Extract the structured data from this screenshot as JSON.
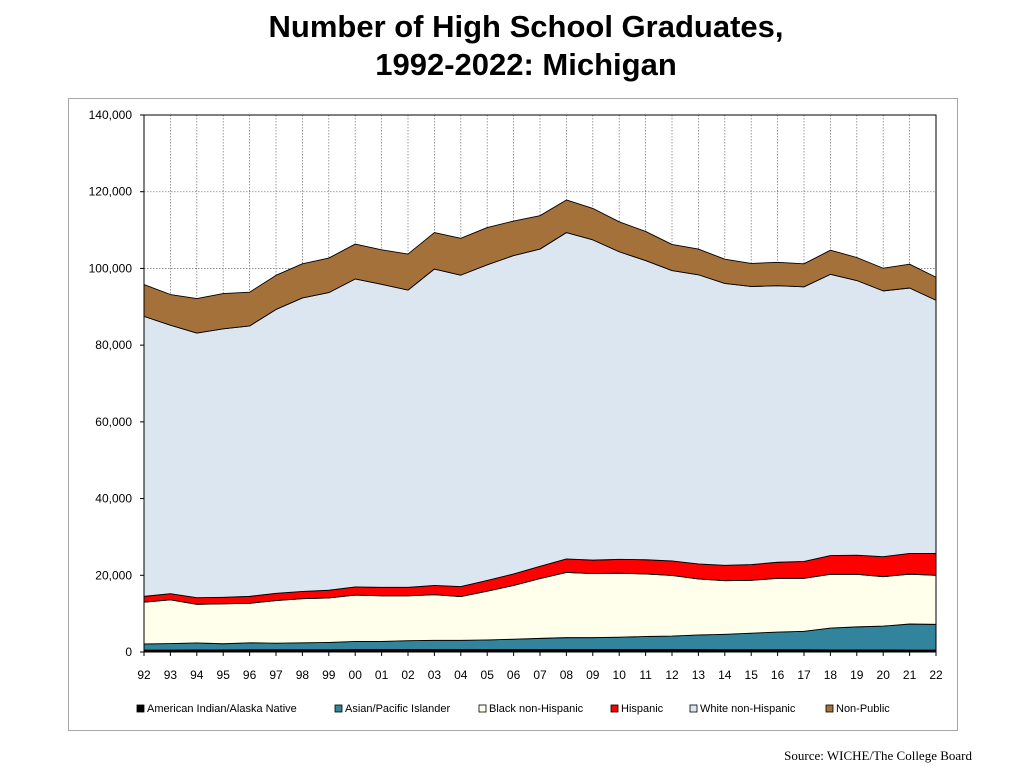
{
  "title_line1": "Number of High School Graduates,",
  "title_line2": "1992-2022:  Michigan",
  "source": "Source: WICHE/The College Board",
  "chart_data": {
    "type": "area",
    "stacked": true,
    "categories": [
      "92",
      "93",
      "94",
      "95",
      "96",
      "97",
      "98",
      "99",
      "00",
      "01",
      "02",
      "03",
      "04",
      "05",
      "06",
      "07",
      "08",
      "09",
      "10",
      "11",
      "12",
      "13",
      "14",
      "15",
      "16",
      "17",
      "18",
      "19",
      "20",
      "21",
      "22"
    ],
    "ylim": [
      0,
      140000
    ],
    "yticks": [
      0,
      20000,
      40000,
      60000,
      80000,
      100000,
      120000,
      140000
    ],
    "ytick_labels": [
      "0",
      "20,000",
      "40,000",
      "60,000",
      "80,000",
      "100,000",
      "120,000",
      "140,000"
    ],
    "grid": true,
    "legend_position": "bottom",
    "series": [
      {
        "name": "American Indian/Alaska Native",
        "color": "#000000",
        "values": [
          500,
          500,
          550,
          550,
          600,
          600,
          600,
          600,
          650,
          650,
          650,
          650,
          650,
          650,
          650,
          650,
          650,
          650,
          650,
          650,
          650,
          650,
          600,
          600,
          600,
          600,
          550,
          550,
          550,
          500,
          500
        ]
      },
      {
        "name": "Asian/Pacific Islander",
        "color": "#31849b",
        "values": [
          1600,
          1700,
          1800,
          1600,
          1800,
          1700,
          1800,
          1900,
          2100,
          2100,
          2300,
          2400,
          2400,
          2500,
          2700,
          2900,
          3100,
          3100,
          3200,
          3400,
          3500,
          3800,
          4000,
          4300,
          4600,
          4800,
          5700,
          6000,
          6200,
          6800,
          6700
        ]
      },
      {
        "name": "Black non-Hispanic",
        "color": "#ffffeb",
        "values": [
          10900,
          11400,
          10100,
          10400,
          10300,
          11100,
          11500,
          11600,
          12100,
          11900,
          11700,
          11900,
          11400,
          12700,
          14000,
          15600,
          17000,
          16700,
          16700,
          16300,
          15800,
          14600,
          14000,
          13800,
          14000,
          13800,
          14000,
          13700,
          12900,
          13000,
          12800
        ]
      },
      {
        "name": "Hispanic",
        "color": "#ff0000",
        "values": [
          1500,
          1600,
          1700,
          1700,
          1800,
          1900,
          1900,
          2000,
          2100,
          2200,
          2200,
          2400,
          2600,
          2800,
          3000,
          3200,
          3500,
          3500,
          3600,
          3700,
          3800,
          3900,
          4000,
          4100,
          4200,
          4400,
          4900,
          5000,
          5200,
          5400,
          5700
        ]
      },
      {
        "name": "White non-Hispanic",
        "color": "#dce6f1",
        "values": [
          73000,
          70000,
          69000,
          70000,
          70500,
          74000,
          76500,
          77600,
          80300,
          79000,
          77500,
          82500,
          81200,
          82300,
          83000,
          82700,
          85100,
          83500,
          80200,
          78000,
          75700,
          75400,
          73500,
          72500,
          72100,
          71600,
          73300,
          71600,
          69300,
          69200,
          66000
        ]
      },
      {
        "name": "Non-Public",
        "color": "#a5713a",
        "values": [
          8300,
          8000,
          9000,
          9200,
          8800,
          8900,
          8900,
          9000,
          9100,
          9000,
          9400,
          9500,
          9600,
          9700,
          9000,
          8700,
          8500,
          8200,
          7800,
          7600,
          6800,
          6700,
          6300,
          6000,
          6100,
          6000,
          6300,
          6000,
          5900,
          6200,
          6000
        ]
      }
    ]
  }
}
